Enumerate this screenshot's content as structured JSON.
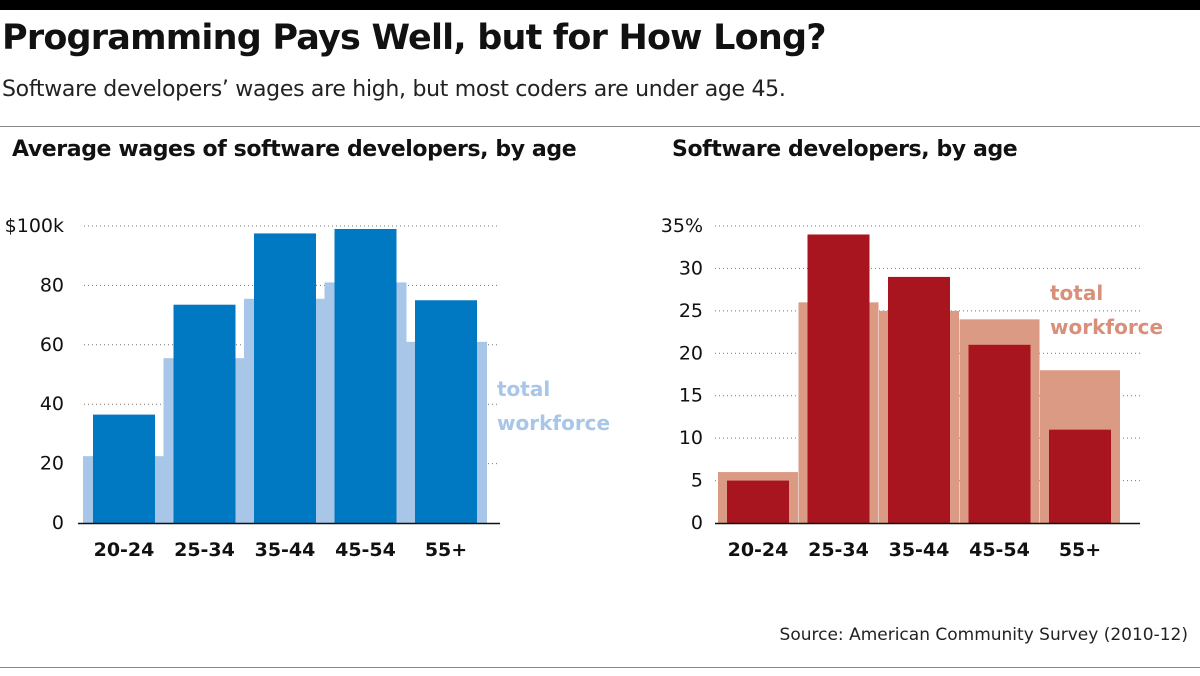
{
  "header": {
    "title": "Programming Pays Well, but for How Long?",
    "subtitle": "Software developers’ wages are high, but most coders are under age 45."
  },
  "source": "Source: American Community Survey (2010-12)",
  "colors": {
    "wage_dev": "#0079c2",
    "wage_workforce": "#a7c6e8",
    "wage_label": "#a7c6e8",
    "share_dev": "#a8151f",
    "share_workforce": "#da9a84",
    "share_label": "#d9907a",
    "gridline": "#777777"
  },
  "chart_data": [
    {
      "type": "bar",
      "title": "Average wages of software developers, by age",
      "categories": [
        "20-24",
        "25-34",
        "35-44",
        "45-54",
        "55+"
      ],
      "ylim": [
        0,
        100
      ],
      "ytick_values": [
        0,
        20,
        40,
        60,
        80,
        100
      ],
      "ytick_labels": [
        "0",
        "20",
        "40",
        "60",
        "80",
        "$100k"
      ],
      "grid": true,
      "series": [
        {
          "name": "total workforce",
          "values": [
            22.5,
            55.5,
            75.5,
            81,
            61
          ]
        },
        {
          "values": [
            36.5,
            73.5,
            97.5,
            99,
            75
          ]
        }
      ],
      "annotation": [
        "total",
        "workforce"
      ]
    },
    {
      "type": "bar",
      "title": "Software developers, by age",
      "categories": [
        "20-24",
        "25-34",
        "35-44",
        "45-54",
        "55+"
      ],
      "ylim": [
        0,
        35
      ],
      "ytick_values": [
        0,
        5,
        10,
        15,
        20,
        25,
        30,
        35
      ],
      "ytick_labels": [
        "0",
        "5",
        "10",
        "15",
        "20",
        "25",
        "30",
        "35%"
      ],
      "grid": true,
      "series": [
        {
          "name": "total workforce",
          "values": [
            6,
            26,
            25,
            24,
            18
          ]
        },
        {
          "values": [
            5,
            34,
            29,
            21,
            11
          ]
        }
      ],
      "annotation": [
        "total",
        "workforce"
      ]
    }
  ]
}
